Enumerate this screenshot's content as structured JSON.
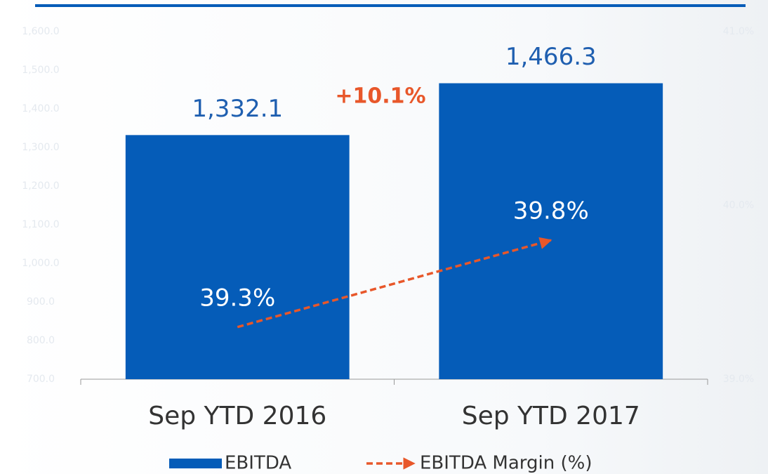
{
  "chart_data": {
    "type": "bar",
    "categories": [
      "Sep YTD 2016",
      "Sep YTD 2017"
    ],
    "series": [
      {
        "name": "EBITDA",
        "color": "#055cb8",
        "values": [
          1332.1,
          1466.3
        ],
        "value_labels": [
          "1,332.1",
          "1,466.3"
        ]
      },
      {
        "name": "EBITDA Margin (%)",
        "color": "#e8572a",
        "axis": "y2",
        "values": [
          39.3,
          39.8
        ],
        "value_labels": [
          "39.3%",
          "39.8%"
        ]
      }
    ],
    "annotation": "+10.1%",
    "ylim": [
      700,
      1600
    ],
    "yticks": [
      {
        "value": 700,
        "label": "700.0"
      },
      {
        "value": 800,
        "label": "800.0"
      },
      {
        "value": 900,
        "label": "900.0"
      },
      {
        "value": 1000,
        "label": "1,000.0"
      },
      {
        "value": 1100,
        "label": "1,100.0"
      },
      {
        "value": 1200,
        "label": "1,200.0"
      },
      {
        "value": 1300,
        "label": "1,300.0"
      },
      {
        "value": 1400,
        "label": "1,400.0"
      },
      {
        "value": 1500,
        "label": "1,500.0"
      },
      {
        "value": 1600,
        "label": "1,600.0"
      }
    ],
    "y2lim": [
      39,
      41
    ],
    "y2ticks": [
      {
        "value": 39,
        "label": "39.0%"
      },
      {
        "value": 40,
        "label": "40.0%"
      },
      {
        "value": 41,
        "label": "41.0%"
      }
    ],
    "grid": false
  }
}
